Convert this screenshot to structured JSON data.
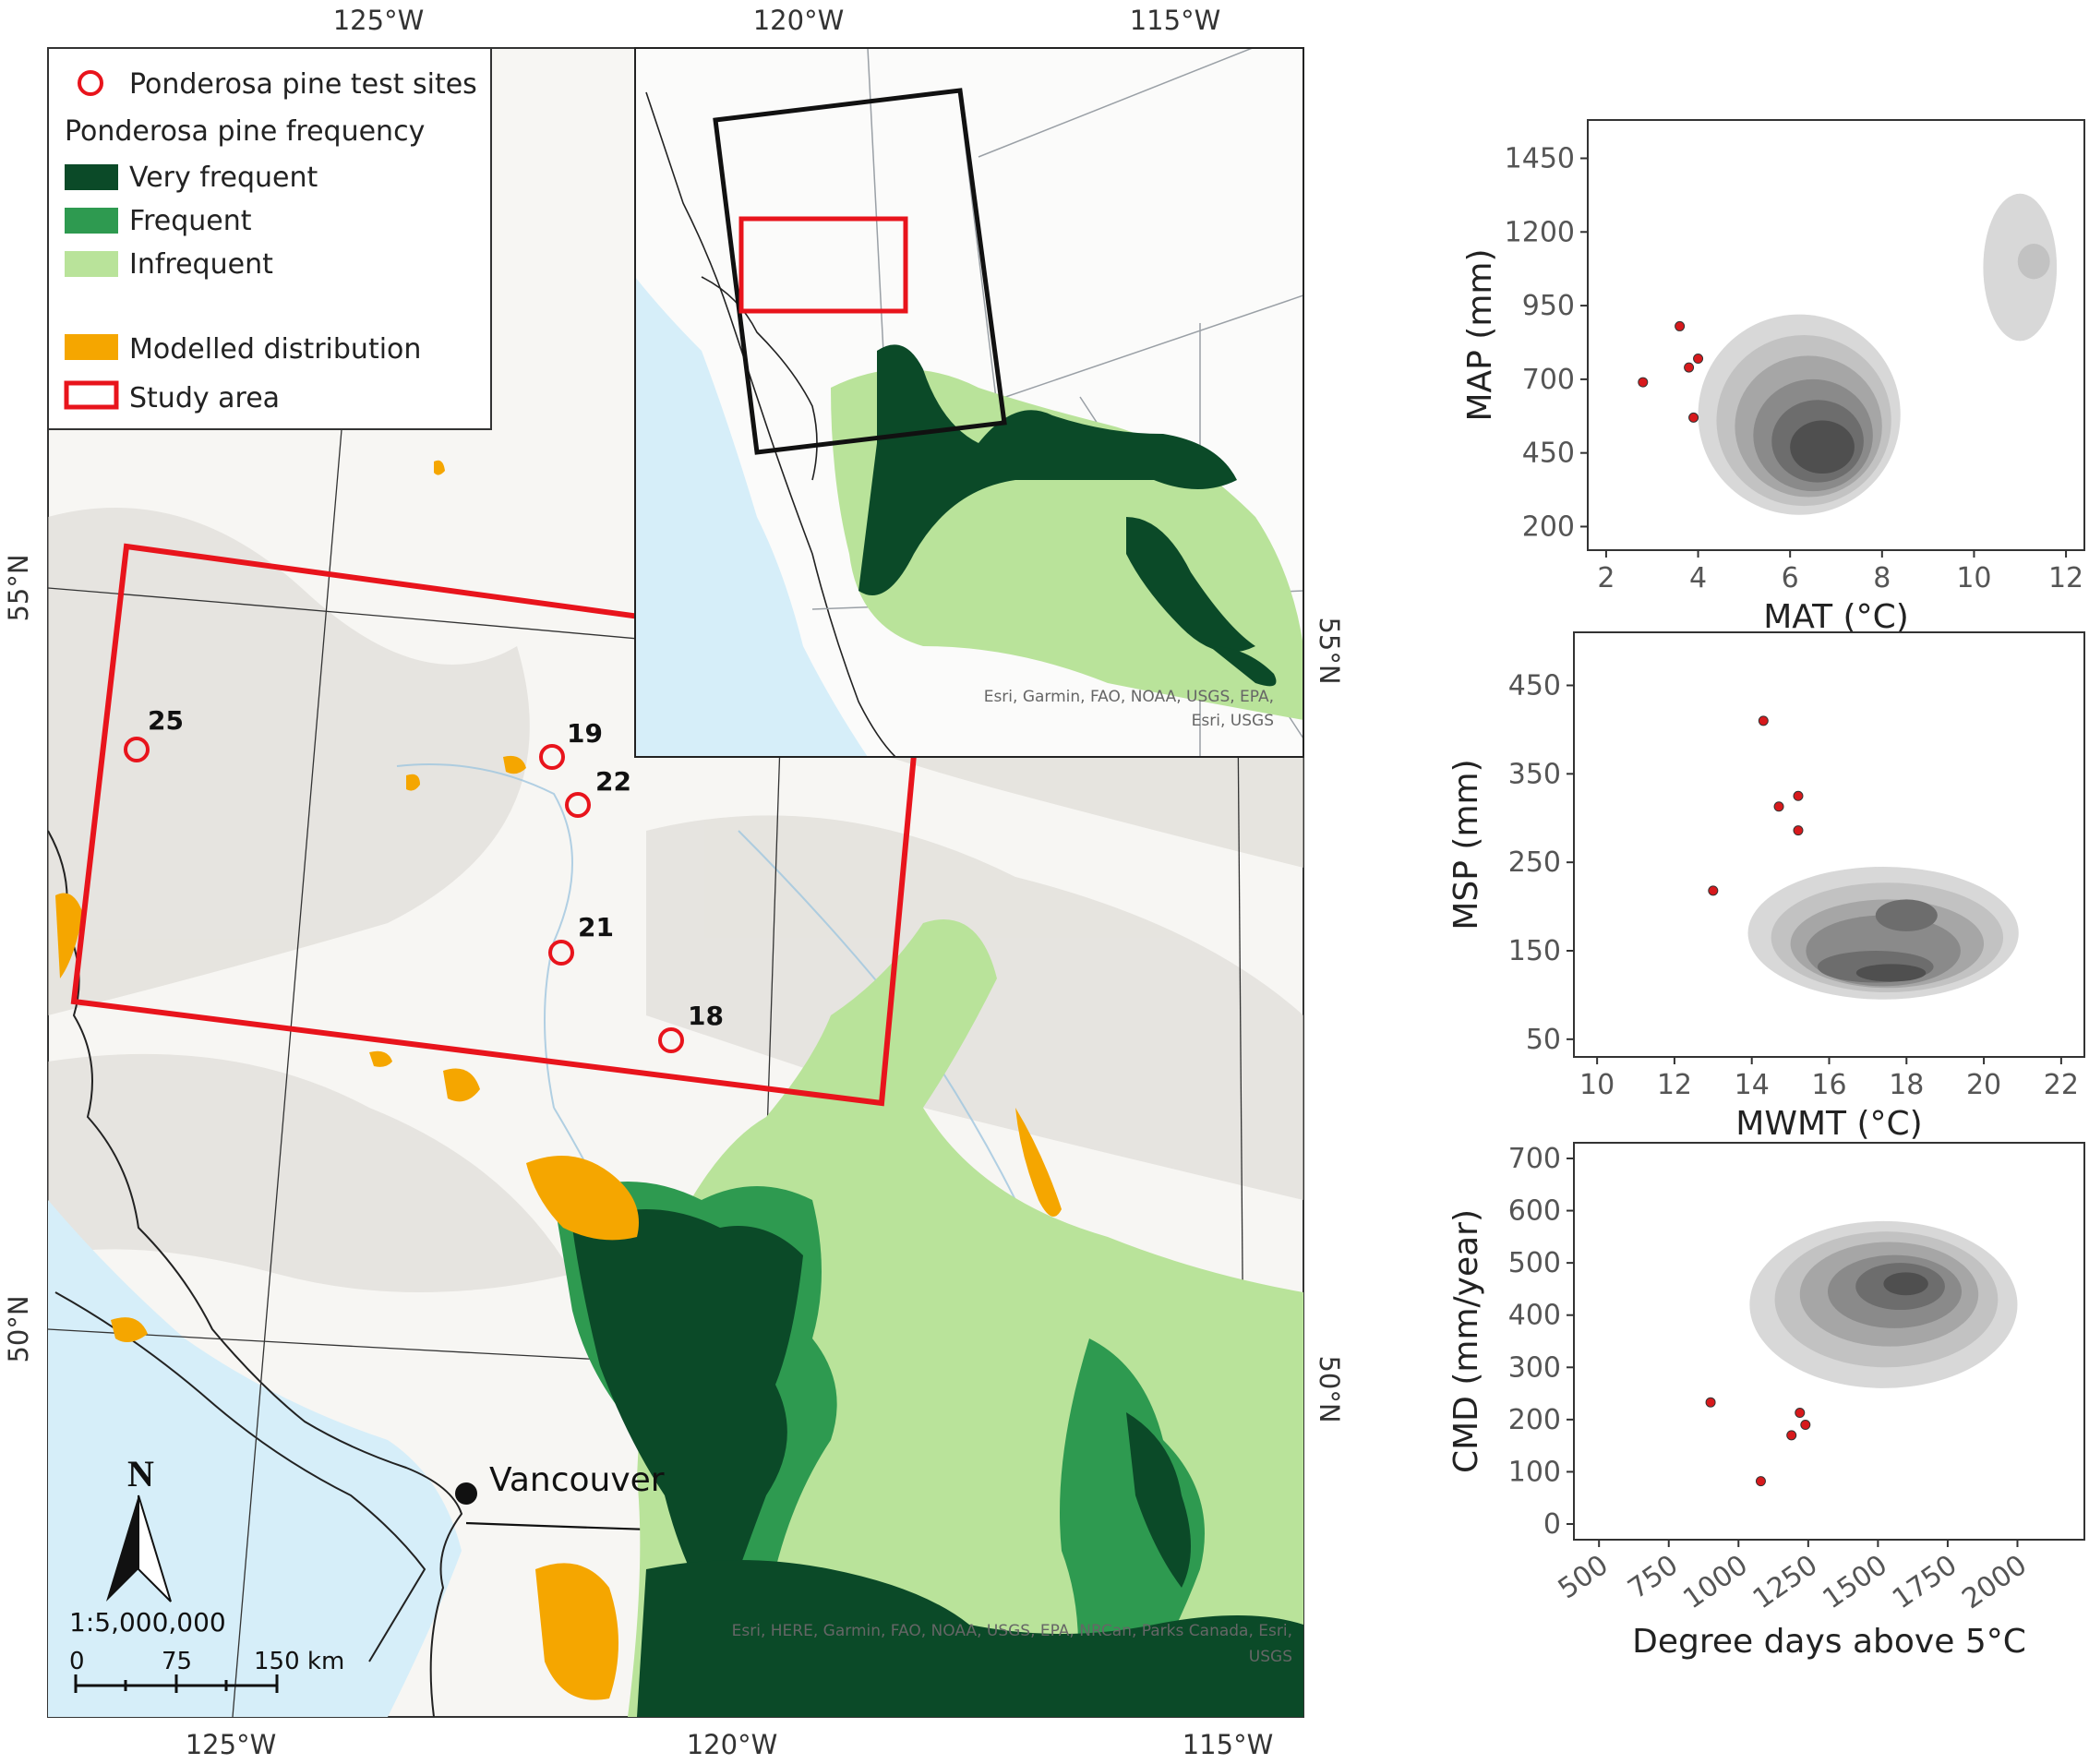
{
  "map": {
    "graticule": {
      "top": [
        "125°W",
        "120°W",
        "115°W"
      ],
      "bottom": [
        "125°W",
        "120°W",
        "115°W"
      ],
      "left": [
        "55°N",
        "50°N"
      ],
      "right": [
        "55°N",
        "50°N"
      ]
    },
    "legend": {
      "test_sites": "Ponderosa pine test sites",
      "frequency_title": "Ponderosa pine frequency",
      "very_frequent": "Very frequent",
      "frequent": "Frequent",
      "infrequent": "Infrequent",
      "modelled": "Modelled distribution",
      "study_area": "Study area"
    },
    "colors": {
      "very_frequent": "#0b4a28",
      "frequent": "#2e9a50",
      "infrequent": "#b9e39a",
      "modelled": "#f5a600",
      "study_area": "#e8141c",
      "site": "#e8141c",
      "ocean": "#d6eef9"
    },
    "sites": [
      {
        "id": "25"
      },
      {
        "id": "19"
      },
      {
        "id": "22"
      },
      {
        "id": "21"
      },
      {
        "id": "18"
      }
    ],
    "city": "Vancouver",
    "north": "N",
    "scale": {
      "ratio": "1:5,000,000",
      "ticks": [
        "0",
        "75",
        "150 km"
      ]
    },
    "attribution_main": "Esri, HERE, Garmin, FAO, NOAA, USGS, EPA, NRCan, Parks Canada, Esri,",
    "attribution_main_2": "USGS",
    "attribution_inset": "Esri, Garmin, FAO, NOAA, USGS, EPA,",
    "attribution_inset_2": "Esri, USGS"
  },
  "chart_data": [
    {
      "type": "scatter",
      "xlabel": "MAT (°C)",
      "ylabel": "MAP (mm)",
      "xticks": [
        2,
        4,
        6,
        8,
        10,
        12
      ],
      "yticks": [
        200,
        450,
        700,
        950,
        1200,
        1450
      ],
      "xlim": [
        1.6,
        12.4
      ],
      "ylim": [
        120,
        1580
      ],
      "density": [
        {
          "x": 6.2,
          "y": 580,
          "rx": 2.2,
          "ry": 340,
          "level": 1
        },
        {
          "x": 6.3,
          "y": 560,
          "rx": 1.9,
          "ry": 290,
          "level": 2
        },
        {
          "x": 6.4,
          "y": 540,
          "rx": 1.6,
          "ry": 240,
          "level": 3
        },
        {
          "x": 6.5,
          "y": 510,
          "rx": 1.3,
          "ry": 190,
          "level": 4
        },
        {
          "x": 6.6,
          "y": 490,
          "rx": 1.0,
          "ry": 140,
          "level": 5
        },
        {
          "x": 6.7,
          "y": 470,
          "rx": 0.7,
          "ry": 90,
          "level": 6
        },
        {
          "x": 11.0,
          "y": 1080,
          "rx": 0.8,
          "ry": 250,
          "level": 1
        },
        {
          "x": 11.3,
          "y": 1100,
          "rx": 0.35,
          "ry": 60,
          "level": 2
        }
      ],
      "points": [
        {
          "x": 2.8,
          "y": 690
        },
        {
          "x": 3.6,
          "y": 880
        },
        {
          "x": 3.8,
          "y": 740
        },
        {
          "x": 4.0,
          "y": 770
        },
        {
          "x": 3.9,
          "y": 570
        }
      ]
    },
    {
      "type": "scatter",
      "xlabel": "MWMT (°C)",
      "ylabel": "MSP (mm)",
      "xticks": [
        10,
        12,
        14,
        16,
        18,
        20,
        22
      ],
      "yticks": [
        50,
        150,
        250,
        350,
        450
      ],
      "xlim": [
        9.4,
        22.6
      ],
      "ylim": [
        30,
        510
      ],
      "density": [
        {
          "x": 17.4,
          "y": 170,
          "rx": 3.5,
          "ry": 75,
          "level": 1
        },
        {
          "x": 17.5,
          "y": 165,
          "rx": 3.0,
          "ry": 62,
          "level": 2
        },
        {
          "x": 17.5,
          "y": 158,
          "rx": 2.5,
          "ry": 50,
          "level": 3
        },
        {
          "x": 17.4,
          "y": 150,
          "rx": 2.0,
          "ry": 40,
          "level": 4
        },
        {
          "x": 17.2,
          "y": 132,
          "rx": 1.5,
          "ry": 18,
          "level": 5
        },
        {
          "x": 18.0,
          "y": 190,
          "rx": 0.8,
          "ry": 18,
          "level": 5
        },
        {
          "x": 17.6,
          "y": 125,
          "rx": 0.9,
          "ry": 10,
          "level": 6
        }
      ],
      "points": [
        {
          "x": 14.3,
          "y": 410
        },
        {
          "x": 14.7,
          "y": 313
        },
        {
          "x": 15.2,
          "y": 325
        },
        {
          "x": 15.2,
          "y": 286
        },
        {
          "x": 13.0,
          "y": 218
        }
      ]
    },
    {
      "type": "scatter",
      "xlabel": "Degree days above 5°C",
      "ylabel": "CMD (mm/year)",
      "xticks": [
        500,
        750,
        1000,
        1250,
        1500,
        1750,
        2000
      ],
      "yticks": [
        0,
        100,
        200,
        300,
        400,
        500,
        600,
        700
      ],
      "xlim": [
        410,
        2240
      ],
      "ylim": [
        -30,
        730
      ],
      "density": [
        {
          "x": 1520,
          "y": 420,
          "rx": 480,
          "ry": 160,
          "level": 1
        },
        {
          "x": 1530,
          "y": 430,
          "rx": 400,
          "ry": 130,
          "level": 2
        },
        {
          "x": 1540,
          "y": 440,
          "rx": 320,
          "ry": 100,
          "level": 3
        },
        {
          "x": 1560,
          "y": 445,
          "rx": 240,
          "ry": 70,
          "level": 4
        },
        {
          "x": 1580,
          "y": 455,
          "rx": 160,
          "ry": 45,
          "level": 5
        },
        {
          "x": 1600,
          "y": 460,
          "rx": 80,
          "ry": 22,
          "level": 6
        }
      ],
      "points": [
        {
          "x": 900,
          "y": 233
        },
        {
          "x": 1220,
          "y": 213
        },
        {
          "x": 1240,
          "y": 190
        },
        {
          "x": 1190,
          "y": 170
        },
        {
          "x": 1080,
          "y": 82
        }
      ]
    }
  ]
}
